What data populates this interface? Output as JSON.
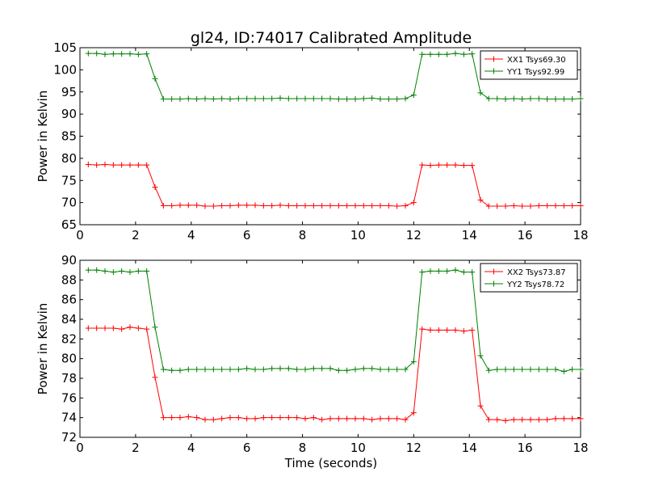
{
  "figure": {
    "title": "gl24, ID:74017 Calibrated Amplitude",
    "xlabel": "Time (seconds)"
  },
  "chart_data": [
    {
      "type": "line",
      "ylabel": "Power in Kelvin",
      "xlim": [
        0,
        18
      ],
      "ylim": [
        65,
        105
      ],
      "xticks": [
        "0",
        "2",
        "4",
        "6",
        "8",
        "10",
        "12",
        "14",
        "16",
        "18"
      ],
      "yticks": [
        "65",
        "70",
        "75",
        "80",
        "85",
        "90",
        "95",
        "100",
        "105"
      ],
      "legend_position": "top-right",
      "x": [
        0.3,
        0.6,
        0.9,
        1.2,
        1.5,
        1.8,
        2.1,
        2.4,
        2.7,
        3.0,
        3.3,
        3.6,
        3.9,
        4.2,
        4.5,
        4.8,
        5.1,
        5.4,
        5.7,
        6.0,
        6.3,
        6.6,
        6.9,
        7.2,
        7.5,
        7.8,
        8.1,
        8.4,
        8.7,
        9.0,
        9.3,
        9.6,
        9.9,
        10.2,
        10.5,
        10.8,
        11.1,
        11.4,
        11.7,
        12.0,
        12.3,
        12.6,
        12.9,
        13.2,
        13.5,
        13.8,
        14.1,
        14.4,
        14.7,
        15.0,
        15.3,
        15.6,
        15.9,
        16.2,
        16.5,
        16.8,
        17.1,
        17.4,
        17.7,
        18.0
      ],
      "series": [
        {
          "name": "XX1 Tsys69.30",
          "color": "#ff0000",
          "values": [
            78.6,
            78.5,
            78.6,
            78.5,
            78.5,
            78.5,
            78.5,
            78.5,
            73.5,
            69.3,
            69.3,
            69.4,
            69.4,
            69.4,
            69.2,
            69.2,
            69.3,
            69.3,
            69.4,
            69.4,
            69.4,
            69.3,
            69.3,
            69.4,
            69.3,
            69.3,
            69.3,
            69.3,
            69.3,
            69.3,
            69.3,
            69.3,
            69.3,
            69.3,
            69.3,
            69.3,
            69.3,
            69.2,
            69.3,
            70.0,
            78.5,
            78.4,
            78.5,
            78.5,
            78.5,
            78.4,
            78.4,
            70.6,
            69.2,
            69.2,
            69.2,
            69.3,
            69.2,
            69.2,
            69.3,
            69.3,
            69.3,
            69.3,
            69.3,
            69.3
          ]
        },
        {
          "name": "YY1 Tsys92.99",
          "color": "#008000",
          "values": [
            103.7,
            103.7,
            103.5,
            103.6,
            103.6,
            103.6,
            103.5,
            103.6,
            98.0,
            93.4,
            93.4,
            93.4,
            93.5,
            93.4,
            93.5,
            93.4,
            93.5,
            93.4,
            93.5,
            93.5,
            93.5,
            93.5,
            93.5,
            93.6,
            93.5,
            93.5,
            93.5,
            93.5,
            93.5,
            93.5,
            93.4,
            93.4,
            93.4,
            93.5,
            93.6,
            93.4,
            93.4,
            93.4,
            93.5,
            94.3,
            103.5,
            103.5,
            103.5,
            103.5,
            103.7,
            103.5,
            103.6,
            94.8,
            93.5,
            93.5,
            93.4,
            93.5,
            93.4,
            93.5,
            93.5,
            93.4,
            93.4,
            93.4,
            93.4,
            93.5
          ]
        }
      ]
    },
    {
      "type": "line",
      "ylabel": "Power in Kelvin",
      "xlim": [
        0,
        18
      ],
      "ylim": [
        72,
        90
      ],
      "xticks": [
        "0",
        "2",
        "4",
        "6",
        "8",
        "10",
        "12",
        "14",
        "16",
        "18"
      ],
      "yticks": [
        "72",
        "74",
        "76",
        "78",
        "80",
        "82",
        "84",
        "86",
        "88",
        "90"
      ],
      "legend_position": "top-right",
      "x": [
        0.3,
        0.6,
        0.9,
        1.2,
        1.5,
        1.8,
        2.1,
        2.4,
        2.7,
        3.0,
        3.3,
        3.6,
        3.9,
        4.2,
        4.5,
        4.8,
        5.1,
        5.4,
        5.7,
        6.0,
        6.3,
        6.6,
        6.9,
        7.2,
        7.5,
        7.8,
        8.1,
        8.4,
        8.7,
        9.0,
        9.3,
        9.6,
        9.9,
        10.2,
        10.5,
        10.8,
        11.1,
        11.4,
        11.7,
        12.0,
        12.3,
        12.6,
        12.9,
        13.2,
        13.5,
        13.8,
        14.1,
        14.4,
        14.7,
        15.0,
        15.3,
        15.6,
        15.9,
        16.2,
        16.5,
        16.8,
        17.1,
        17.4,
        17.7,
        18.0
      ],
      "series": [
        {
          "name": "XX2 Tsys73.87",
          "color": "#ff0000",
          "values": [
            83.1,
            83.1,
            83.1,
            83.1,
            83.0,
            83.2,
            83.1,
            83.0,
            78.1,
            74.0,
            74.0,
            74.0,
            74.1,
            74.0,
            73.8,
            73.8,
            73.9,
            74.0,
            74.0,
            73.9,
            73.9,
            74.0,
            74.0,
            74.0,
            74.0,
            74.0,
            73.9,
            74.0,
            73.8,
            73.9,
            73.9,
            73.9,
            73.9,
            73.9,
            73.8,
            73.9,
            73.9,
            73.9,
            73.8,
            74.5,
            83.0,
            82.9,
            82.9,
            82.9,
            82.9,
            82.8,
            82.9,
            75.2,
            73.8,
            73.8,
            73.7,
            73.8,
            73.8,
            73.8,
            73.8,
            73.8,
            73.9,
            73.9,
            73.9,
            73.9
          ]
        },
        {
          "name": "YY2 Tsys78.72",
          "color": "#008000",
          "values": [
            89.0,
            89.0,
            88.9,
            88.8,
            88.9,
            88.8,
            88.9,
            88.9,
            83.2,
            78.9,
            78.8,
            78.8,
            78.9,
            78.9,
            78.9,
            78.9,
            78.9,
            78.9,
            78.9,
            79.0,
            78.9,
            78.9,
            79.0,
            79.0,
            79.0,
            78.9,
            78.9,
            79.0,
            79.0,
            79.0,
            78.8,
            78.8,
            78.9,
            79.0,
            79.0,
            78.9,
            78.9,
            78.9,
            78.9,
            79.7,
            88.8,
            88.9,
            88.9,
            88.9,
            89.0,
            88.8,
            88.8,
            80.3,
            78.8,
            78.9,
            78.9,
            78.9,
            78.9,
            78.9,
            78.9,
            78.9,
            78.9,
            78.7,
            78.9,
            78.9
          ]
        }
      ]
    }
  ]
}
